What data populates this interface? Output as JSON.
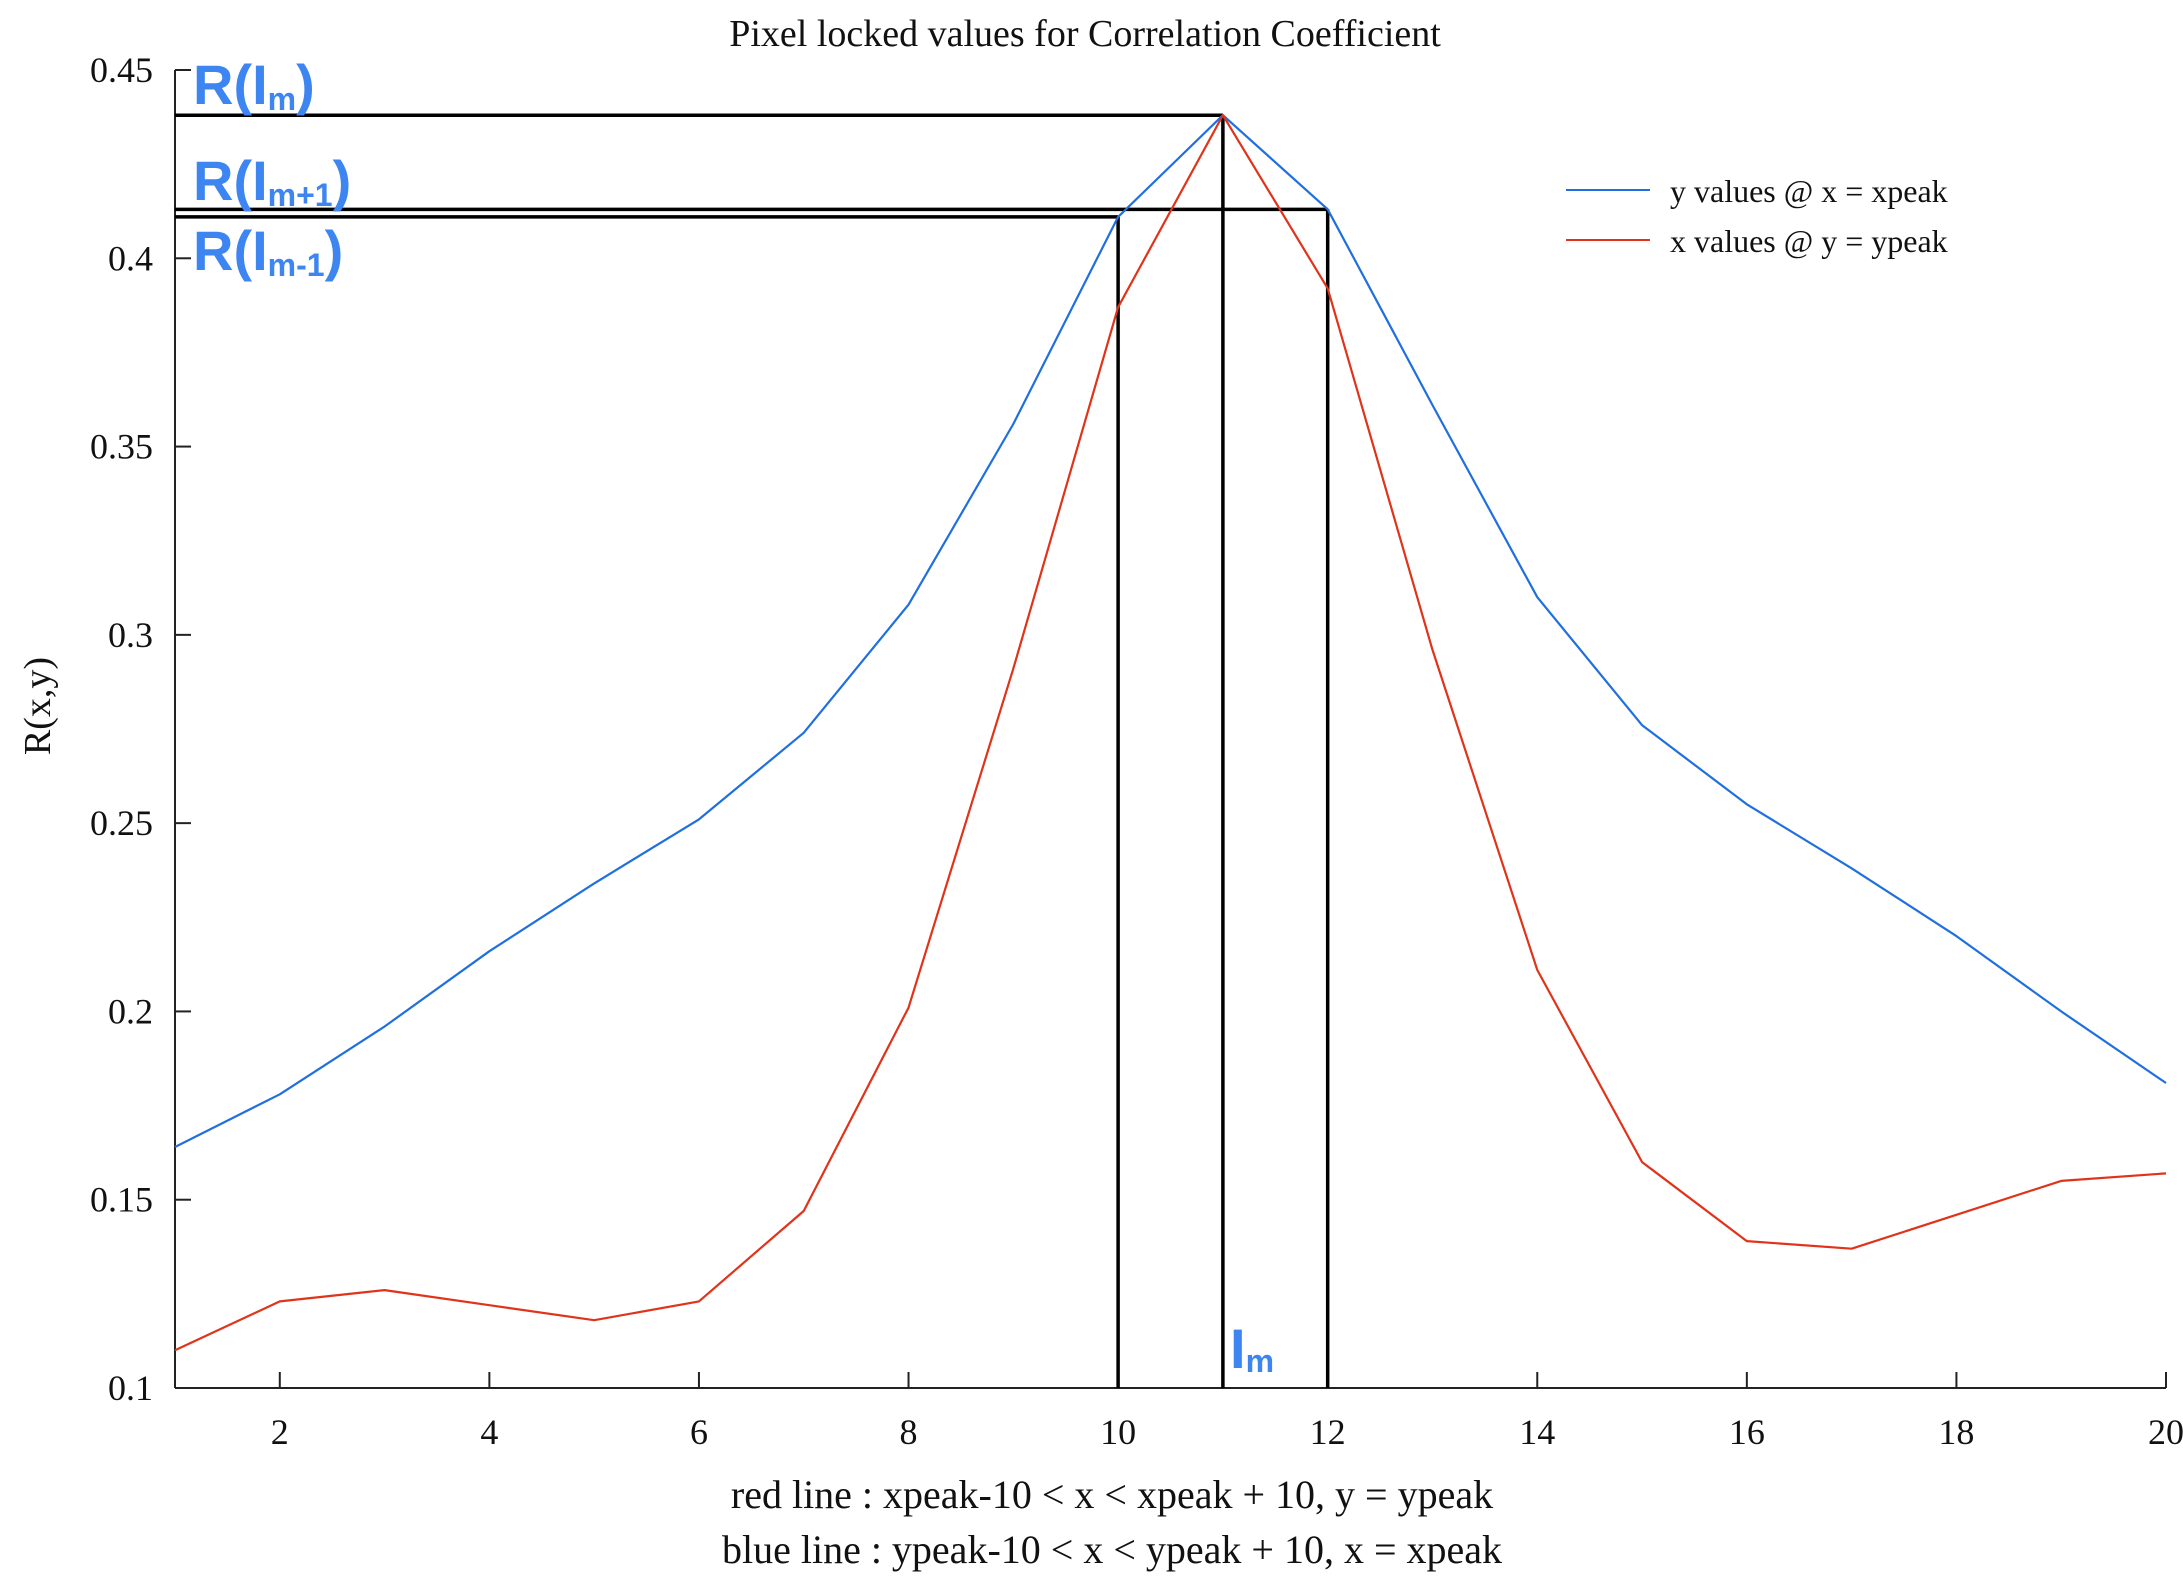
{
  "chart_data": {
    "type": "line",
    "title": "Pixel locked values for Correlation Coefficient",
    "xlabel_lines": [
      "red line : xpeak-10 < x < xpeak + 10, y = ypeak",
      "blue line : ypeak-10 < x < ypeak + 10, x = xpeak"
    ],
    "ylabel": "R(x,y)",
    "xlim": [
      1,
      20
    ],
    "ylim": [
      0.1,
      0.45
    ],
    "xticks": [
      2,
      4,
      6,
      8,
      10,
      12,
      14,
      16,
      18,
      20
    ],
    "yticks": [
      0.1,
      0.15,
      0.2,
      0.25,
      0.3,
      0.35,
      0.4,
      0.45
    ],
    "ytick_labels": [
      "0.1",
      "0.15",
      "0.2",
      "0.25",
      "0.3",
      "0.35",
      "0.4",
      "0.45"
    ],
    "grid": false,
    "legend_position": "top-right",
    "x": [
      1,
      2,
      3,
      4,
      5,
      6,
      7,
      8,
      9,
      10,
      11,
      12,
      13,
      14,
      15,
      16,
      17,
      18,
      19,
      20
    ],
    "series": [
      {
        "name": "y values @ x = xpeak",
        "color": "#1f6fe0",
        "values": [
          0.164,
          0.178,
          0.196,
          0.216,
          0.234,
          0.251,
          0.274,
          0.308,
          0.356,
          0.411,
          0.438,
          0.413,
          0.361,
          0.31,
          0.276,
          0.255,
          0.238,
          0.22,
          0.2,
          0.181
        ]
      },
      {
        "name": "x values @ y = ypeak",
        "color": "#e0331a",
        "values": [
          0.11,
          0.123,
          0.126,
          0.122,
          0.118,
          0.123,
          0.147,
          0.201,
          0.291,
          0.387,
          0.438,
          0.392,
          0.296,
          0.211,
          0.16,
          0.139,
          0.137,
          0.146,
          0.155,
          0.157
        ]
      }
    ],
    "guide_lines": [
      {
        "x": 10,
        "y": 0.411
      },
      {
        "x": 11,
        "y": 0.438
      },
      {
        "x": 12,
        "y": 0.413
      }
    ],
    "annotations": {
      "color": "#3d85f0",
      "r_im": {
        "base": "R(I",
        "sub": "m",
        "close": ")"
      },
      "r_im_plus": {
        "base": "R(I",
        "sub": "m+1",
        "close": ")"
      },
      "r_im_minus": {
        "base": "R(I",
        "sub": "m-1",
        "close": ")"
      },
      "im": {
        "base": "I",
        "sub": "m"
      }
    }
  }
}
